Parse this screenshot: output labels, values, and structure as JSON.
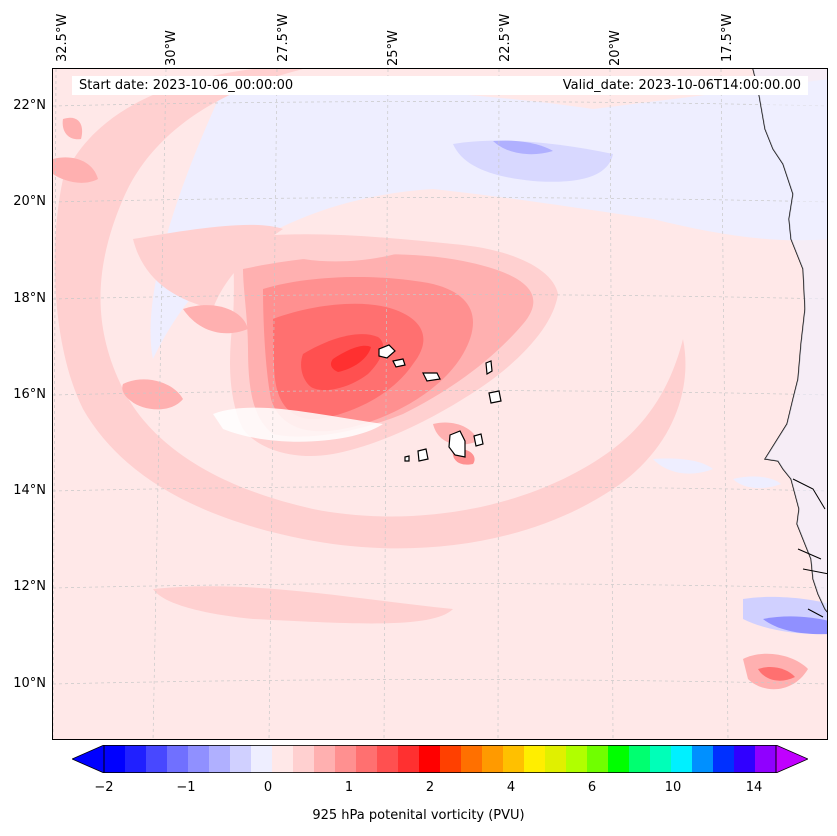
{
  "map": {
    "title_start": "Start date: 2023-10-06_00:00:00",
    "title_valid": "Valid_date: 2023-10-06T14:00:00.00",
    "lon_labels": [
      "32.5°W",
      "30°W",
      "27.5°W",
      "25°W",
      "22.5°W",
      "20°W",
      "17.5°W"
    ],
    "lat_labels": [
      "22°N",
      "20°N",
      "18°N",
      "16°N",
      "14°N",
      "12°N",
      "10°N"
    ],
    "field": "925 hPa potenital vorticity (PVU)"
  },
  "colorbar": {
    "label": "925 hPa potenital vorticity (PVU)",
    "ticks": [
      "−2",
      "−1",
      "0",
      "1",
      "2",
      "4",
      "6",
      "10",
      "14"
    ],
    "colors": [
      "#0000ff",
      "#2020ff",
      "#4848ff",
      "#7070ff",
      "#9090ff",
      "#b0b0ff",
      "#d0d0ff",
      "#eeeeff",
      "#ffe8e8",
      "#ffd0d0",
      "#ffb0b0",
      "#ff9090",
      "#ff7070",
      "#ff5050",
      "#ff3030",
      "#ff0000",
      "#ff4000",
      "#ff7000",
      "#ff9a00",
      "#ffc000",
      "#ffee00",
      "#e0f000",
      "#b0ff00",
      "#70ff00",
      "#00ff00",
      "#00ff70",
      "#00ffb8",
      "#00f0ff",
      "#0090ff",
      "#0030ff",
      "#3000ff",
      "#9000ff"
    ],
    "under_color": "#0000ff",
    "over_color": "#c000ff"
  }
}
